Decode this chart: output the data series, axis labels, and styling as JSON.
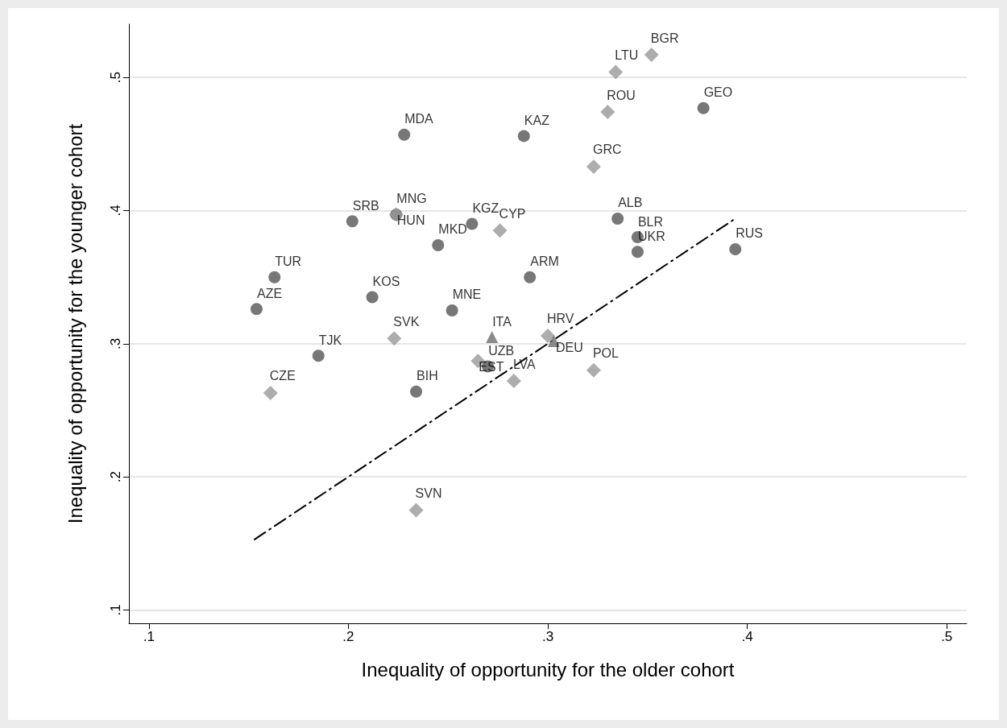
{
  "chart_data": {
    "type": "scatter",
    "xlabel": "Inequality of opportunity for the older cohort",
    "ylabel": "Inequality of opportunity for the younger cohort",
    "xlim": [
      0.09,
      0.51
    ],
    "ylim": [
      0.09,
      0.54
    ],
    "xticks": [
      {
        "value": 0.1,
        "label": ".1"
      },
      {
        "value": 0.2,
        "label": ".2"
      },
      {
        "value": 0.3,
        "label": ".3"
      },
      {
        "value": 0.4,
        "label": ".4"
      },
      {
        "value": 0.5,
        "label": ".5"
      }
    ],
    "yticks": [
      {
        "value": 0.1,
        "label": ".1"
      },
      {
        "value": 0.2,
        "label": ".2"
      },
      {
        "value": 0.3,
        "label": ".3"
      },
      {
        "value": 0.4,
        "label": ".4"
      },
      {
        "value": 0.5,
        "label": ".5"
      }
    ],
    "grid": "y",
    "series": [
      {
        "color": "#555555",
        "marker": "circle",
        "x": [
          0.228,
          0.288,
          0.378,
          0.202,
          0.262,
          0.245,
          0.335,
          0.345,
          0.345,
          0.394,
          0.163,
          0.291,
          0.212,
          0.154,
          0.252,
          0.185,
          0.27,
          0.234,
          0.224
        ],
        "values": [
          0.457,
          0.456,
          0.477,
          0.392,
          0.39,
          0.374,
          0.394,
          0.38,
          0.369,
          0.371,
          0.35,
          0.35,
          0.335,
          0.326,
          0.325,
          0.291,
          0.283,
          0.264,
          0.397
        ],
        "value_labels": [
          "MDA",
          "KAZ",
          "GEO",
          "SRB",
          "KGZ",
          "MKD",
          "ALB",
          "BLR",
          "UKR",
          "RUS",
          "TUR",
          "ARM",
          "KOS",
          "AZE",
          "MNE",
          "TJK",
          "UZB",
          "BIH",
          "MNG"
        ]
      },
      {
        "color": "#999999",
        "marker": "diamond",
        "x": [
          0.352,
          0.334,
          0.33,
          0.323,
          0.224,
          0.276,
          0.223,
          0.3,
          0.265,
          0.283,
          0.323,
          0.161,
          0.234
        ],
        "values": [
          0.517,
          0.504,
          0.474,
          0.433,
          0.397,
          0.385,
          0.304,
          0.306,
          0.287,
          0.272,
          0.28,
          0.263,
          0.175
        ],
        "value_labels": [
          "BGR",
          "LTU",
          "ROU",
          "GRC",
          "HUN",
          "CYP",
          "SVK",
          "HRV",
          "EST",
          "LVA",
          "POL",
          "CZE",
          "SVN"
        ]
      },
      {
        "color": "#6e6e6e",
        "marker": "triangle",
        "x": [
          0.272,
          0.303
        ],
        "values": [
          0.305,
          0.302
        ],
        "value_labels": [
          "ITA",
          "DEU"
        ]
      },
      {
        "type": "line",
        "color": "#000000",
        "line_style": "dashed",
        "marker": "none",
        "x": [
          0.153,
          0.393
        ],
        "values": [
          0.153,
          0.393
        ]
      }
    ]
  }
}
